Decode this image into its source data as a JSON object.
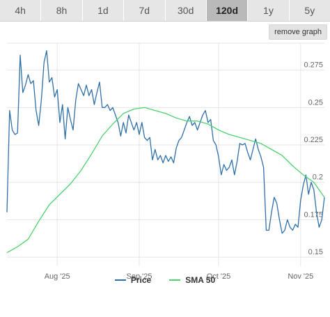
{
  "tabs": [
    {
      "label": "4h",
      "active": false
    },
    {
      "label": "8h",
      "active": false
    },
    {
      "label": "1d",
      "active": false
    },
    {
      "label": "7d",
      "active": false
    },
    {
      "label": "30d",
      "active": false
    },
    {
      "label": "120d",
      "active": true
    },
    {
      "label": "1y",
      "active": false
    },
    {
      "label": "5y",
      "active": false
    }
  ],
  "remove_graph_label": "remove graph",
  "chart_data": {
    "type": "line",
    "xlim": [
      "2025-07-13",
      "2025-11-10"
    ],
    "ylim": [
      0.144,
      0.293
    ],
    "y_ticks": [
      0.15,
      0.175,
      0.2,
      0.225,
      0.25,
      0.275
    ],
    "y_tick_labels": [
      "0.15",
      "0.175",
      "0.2",
      "0.225",
      "0.25",
      "0.275"
    ],
    "x_ticks": [
      "2025-08-01",
      "2025-09-01",
      "2025-10-01",
      "2025-11-01"
    ],
    "x_tick_labels": [
      "Aug '25",
      "Sep '25",
      "Oct '25",
      "Nov '25"
    ],
    "grid": true,
    "legend_position": "bottom",
    "series": [
      {
        "name": "Price",
        "color": "#2f6fa8",
        "points": [
          [
            "2025-07-13",
            0.18
          ],
          [
            "2025-07-14",
            0.248
          ],
          [
            "2025-07-15",
            0.235
          ],
          [
            "2025-07-16",
            0.232
          ],
          [
            "2025-07-17",
            0.233
          ],
          [
            "2025-07-18",
            0.285
          ],
          [
            "2025-07-19",
            0.26
          ],
          [
            "2025-07-20",
            0.265
          ],
          [
            "2025-07-21",
            0.272
          ],
          [
            "2025-07-22",
            0.266
          ],
          [
            "2025-07-23",
            0.268
          ],
          [
            "2025-07-24",
            0.248
          ],
          [
            "2025-07-25",
            0.238
          ],
          [
            "2025-07-26",
            0.255
          ],
          [
            "2025-07-27",
            0.28
          ],
          [
            "2025-07-28",
            0.288
          ],
          [
            "2025-07-29",
            0.267
          ],
          [
            "2025-07-30",
            0.27
          ],
          [
            "2025-07-31",
            0.257
          ],
          [
            "2025-08-01",
            0.262
          ],
          [
            "2025-08-02",
            0.24
          ],
          [
            "2025-08-03",
            0.252
          ],
          [
            "2025-08-04",
            0.229
          ],
          [
            "2025-08-05",
            0.25
          ],
          [
            "2025-08-06",
            0.242
          ],
          [
            "2025-08-07",
            0.235
          ],
          [
            "2025-08-08",
            0.255
          ],
          [
            "2025-08-09",
            0.266
          ],
          [
            "2025-08-10",
            0.262
          ],
          [
            "2025-08-11",
            0.258
          ],
          [
            "2025-08-12",
            0.265
          ],
          [
            "2025-08-13",
            0.258
          ],
          [
            "2025-08-14",
            0.262
          ],
          [
            "2025-08-15",
            0.252
          ],
          [
            "2025-08-16",
            0.26
          ],
          [
            "2025-08-17",
            0.267
          ],
          [
            "2025-08-18",
            0.25
          ],
          [
            "2025-08-19",
            0.25
          ],
          [
            "2025-08-20",
            0.252
          ],
          [
            "2025-08-21",
            0.248
          ],
          [
            "2025-08-22",
            0.25
          ],
          [
            "2025-08-23",
            0.245
          ],
          [
            "2025-08-24",
            0.24
          ],
          [
            "2025-08-25",
            0.231
          ],
          [
            "2025-08-26",
            0.24
          ],
          [
            "2025-08-27",
            0.233
          ],
          [
            "2025-08-28",
            0.245
          ],
          [
            "2025-08-29",
            0.24
          ],
          [
            "2025-08-30",
            0.235
          ],
          [
            "2025-08-31",
            0.24
          ],
          [
            "2025-09-01",
            0.232
          ],
          [
            "2025-09-02",
            0.24
          ],
          [
            "2025-09-03",
            0.23
          ],
          [
            "2025-09-04",
            0.228
          ],
          [
            "2025-09-05",
            0.23
          ],
          [
            "2025-09-06",
            0.215
          ],
          [
            "2025-09-07",
            0.222
          ],
          [
            "2025-09-08",
            0.215
          ],
          [
            "2025-09-09",
            0.218
          ],
          [
            "2025-09-10",
            0.213
          ],
          [
            "2025-09-11",
            0.218
          ],
          [
            "2025-09-12",
            0.214
          ],
          [
            "2025-09-13",
            0.217
          ],
          [
            "2025-09-14",
            0.213
          ],
          [
            "2025-09-15",
            0.223
          ],
          [
            "2025-09-16",
            0.228
          ],
          [
            "2025-09-17",
            0.23
          ],
          [
            "2025-09-18",
            0.235
          ],
          [
            "2025-09-19",
            0.24
          ],
          [
            "2025-09-20",
            0.244
          ],
          [
            "2025-09-21",
            0.238
          ],
          [
            "2025-09-22",
            0.24
          ],
          [
            "2025-09-23",
            0.235
          ],
          [
            "2025-09-24",
            0.24
          ],
          [
            "2025-09-25",
            0.245
          ],
          [
            "2025-09-26",
            0.248
          ],
          [
            "2025-09-27",
            0.24
          ],
          [
            "2025-09-28",
            0.242
          ],
          [
            "2025-09-29",
            0.228
          ],
          [
            "2025-09-30",
            0.225
          ],
          [
            "2025-10-01",
            0.217
          ],
          [
            "2025-10-02",
            0.205
          ],
          [
            "2025-10-03",
            0.212
          ],
          [
            "2025-10-04",
            0.208
          ],
          [
            "2025-10-05",
            0.21
          ],
          [
            "2025-10-06",
            0.215
          ],
          [
            "2025-10-07",
            0.205
          ],
          [
            "2025-10-08",
            0.214
          ],
          [
            "2025-10-09",
            0.226
          ],
          [
            "2025-10-10",
            0.225
          ],
          [
            "2025-10-11",
            0.226
          ],
          [
            "2025-10-12",
            0.22
          ],
          [
            "2025-10-13",
            0.215
          ],
          [
            "2025-10-14",
            0.222
          ],
          [
            "2025-10-15",
            0.229
          ],
          [
            "2025-10-16",
            0.222
          ],
          [
            "2025-10-17",
            0.217
          ],
          [
            "2025-10-18",
            0.21
          ],
          [
            "2025-10-19",
            0.168
          ],
          [
            "2025-10-20",
            0.168
          ],
          [
            "2025-10-21",
            0.18
          ],
          [
            "2025-10-22",
            0.19
          ],
          [
            "2025-10-23",
            0.186
          ],
          [
            "2025-10-24",
            0.175
          ],
          [
            "2025-10-25",
            0.166
          ],
          [
            "2025-10-26",
            0.168
          ],
          [
            "2025-10-27",
            0.175
          ],
          [
            "2025-10-28",
            0.17
          ],
          [
            "2025-10-29",
            0.168
          ],
          [
            "2025-10-30",
            0.172
          ],
          [
            "2025-10-31",
            0.17
          ],
          [
            "2025-11-01",
            0.188
          ],
          [
            "2025-11-02",
            0.198
          ],
          [
            "2025-11-03",
            0.205
          ],
          [
            "2025-11-04",
            0.192
          ],
          [
            "2025-11-05",
            0.2
          ],
          [
            "2025-11-06",
            0.195
          ],
          [
            "2025-11-07",
            0.18
          ],
          [
            "2025-11-08",
            0.17
          ],
          [
            "2025-11-09",
            0.175
          ],
          [
            "2025-11-10",
            0.19
          ]
        ]
      },
      {
        "name": "SMA 50",
        "color": "#4cd36e",
        "points": [
          [
            "2025-07-13",
            0.153
          ],
          [
            "2025-07-17",
            0.157
          ],
          [
            "2025-07-21",
            0.162
          ],
          [
            "2025-07-25",
            0.174
          ],
          [
            "2025-07-29",
            0.185
          ],
          [
            "2025-08-02",
            0.192
          ],
          [
            "2025-08-06",
            0.199
          ],
          [
            "2025-08-10",
            0.208
          ],
          [
            "2025-08-14",
            0.219
          ],
          [
            "2025-08-18",
            0.231
          ],
          [
            "2025-08-22",
            0.239
          ],
          [
            "2025-08-26",
            0.246
          ],
          [
            "2025-08-30",
            0.249
          ],
          [
            "2025-09-03",
            0.25
          ],
          [
            "2025-09-07",
            0.248
          ],
          [
            "2025-09-11",
            0.246
          ],
          [
            "2025-09-15",
            0.243
          ],
          [
            "2025-09-19",
            0.241
          ],
          [
            "2025-09-23",
            0.241
          ],
          [
            "2025-09-27",
            0.239
          ],
          [
            "2025-10-01",
            0.235
          ],
          [
            "2025-10-05",
            0.232
          ],
          [
            "2025-10-09",
            0.23
          ],
          [
            "2025-10-13",
            0.228
          ],
          [
            "2025-10-17",
            0.226
          ],
          [
            "2025-10-21",
            0.222
          ],
          [
            "2025-10-25",
            0.218
          ],
          [
            "2025-10-29",
            0.211
          ],
          [
            "2025-11-02",
            0.205
          ],
          [
            "2025-11-06",
            0.2
          ],
          [
            "2025-11-10",
            0.19
          ]
        ]
      }
    ]
  }
}
